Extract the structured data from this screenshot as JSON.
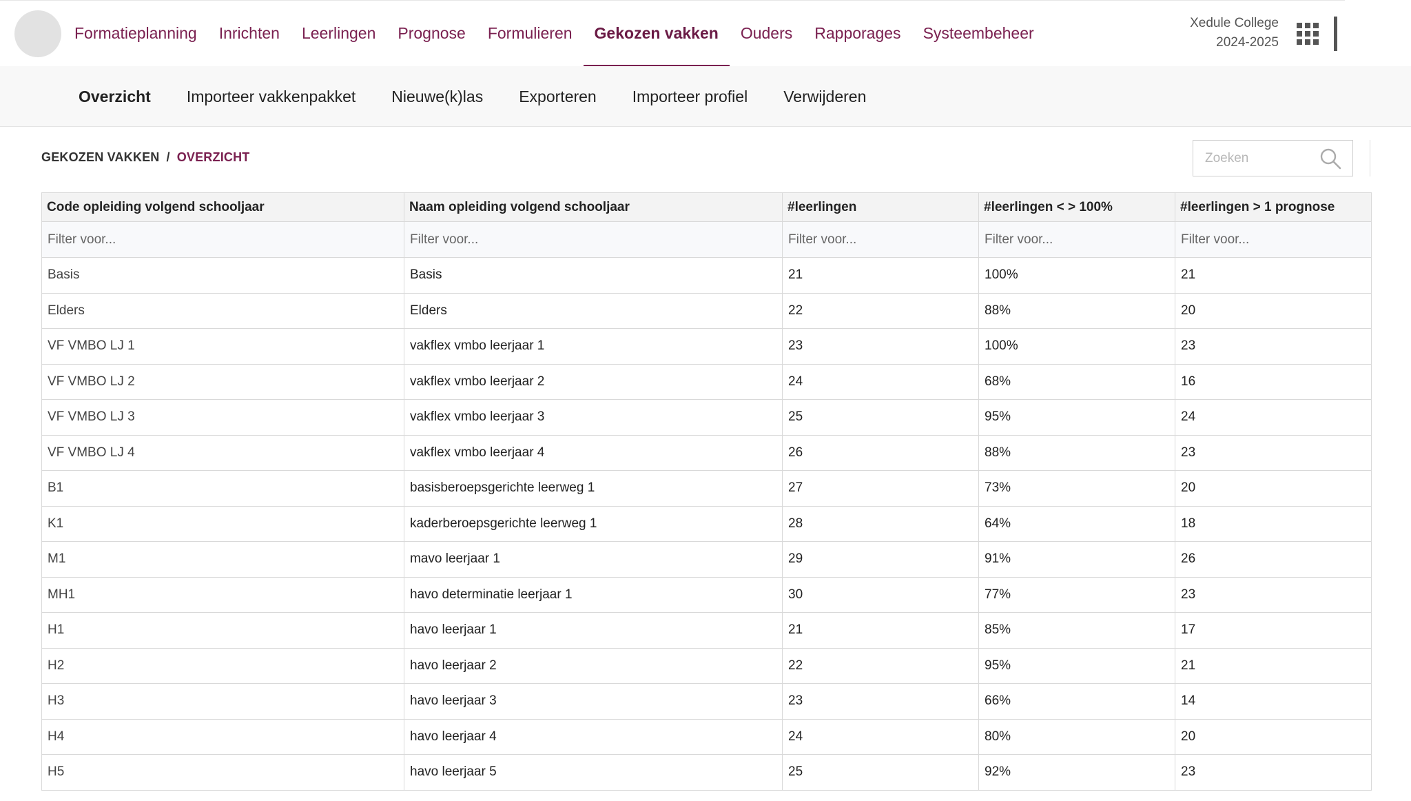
{
  "topnav": {
    "items": [
      {
        "label": "Formatieplanning",
        "active": false
      },
      {
        "label": "Inrichten",
        "active": false
      },
      {
        "label": "Leerlingen",
        "active": false
      },
      {
        "label": "Prognose",
        "active": false
      },
      {
        "label": "Formulieren",
        "active": false
      },
      {
        "label": "Gekozen vakken",
        "active": true
      },
      {
        "label": "Ouders",
        "active": false
      },
      {
        "label": "Rapporages",
        "active": false
      },
      {
        "label": "Systeembeheer",
        "active": false
      }
    ],
    "school_name": "Xedule College",
    "school_year": "2024-2025",
    "apps_icon": "grid-icon"
  },
  "subnav": {
    "items": [
      {
        "label": "Overzicht",
        "active": true
      },
      {
        "label": "Importeer vakkenpakket",
        "active": false
      },
      {
        "label": "Nieuwe(k)las",
        "active": false
      },
      {
        "label": "Exporteren",
        "active": false
      },
      {
        "label": "Importeer profiel",
        "active": false
      },
      {
        "label": "Verwijderen",
        "active": false
      }
    ]
  },
  "breadcrumb": {
    "parent": "GEKOZEN VAKKEN",
    "separator": "/",
    "current": "OVERZICHT"
  },
  "search": {
    "placeholder": "Zoeken",
    "icon": "search-icon"
  },
  "table": {
    "columns": [
      "Code opleiding volgend schooljaar",
      "Naam opleiding volgend schooljaar",
      "#leerlingen",
      "#leerlingen < > 100%",
      "#leerlingen > 1 prognose"
    ],
    "filter_placeholder": "Filter voor...",
    "rows": [
      [
        "Basis",
        "Basis",
        "21",
        "100%",
        "21"
      ],
      [
        "Elders",
        "Elders",
        "22",
        "88%",
        "20"
      ],
      [
        "VF VMBO LJ 1",
        "vakflex vmbo leerjaar 1",
        "23",
        "100%",
        "23"
      ],
      [
        "VF VMBO LJ 2",
        "vakflex vmbo leerjaar 2",
        "24",
        "68%",
        "16"
      ],
      [
        "VF VMBO LJ 3",
        "vakflex vmbo leerjaar 3",
        "25",
        "95%",
        "24"
      ],
      [
        "VF VMBO LJ 4",
        "vakflex vmbo leerjaar 4",
        "26",
        "88%",
        "23"
      ],
      [
        "B1",
        "basisberoepsgerichte leerweg 1",
        "27",
        "73%",
        "20"
      ],
      [
        "K1",
        "kaderberoepsgerichte leerweg 1",
        "28",
        "64%",
        "18"
      ],
      [
        "M1",
        "mavo leerjaar 1",
        "29",
        "91%",
        "26"
      ],
      [
        "MH1",
        "havo determinatie leerjaar 1",
        "30",
        "77%",
        "23"
      ],
      [
        "H1",
        "havo leerjaar 1",
        "21",
        "85%",
        "17"
      ],
      [
        "H2",
        "havo leerjaar 2",
        "22",
        "95%",
        "21"
      ],
      [
        "H3",
        "havo leerjaar 3",
        "23",
        "66%",
        "14"
      ],
      [
        "H4",
        "havo leerjaar 4",
        "24",
        "80%",
        "20"
      ],
      [
        "H5",
        "havo leerjaar 5",
        "25",
        "92%",
        "23"
      ]
    ]
  },
  "colors": {
    "accent": "#7a2050",
    "header_bg": "#f3f3f3",
    "subnav_bg": "#f8f8f8"
  }
}
